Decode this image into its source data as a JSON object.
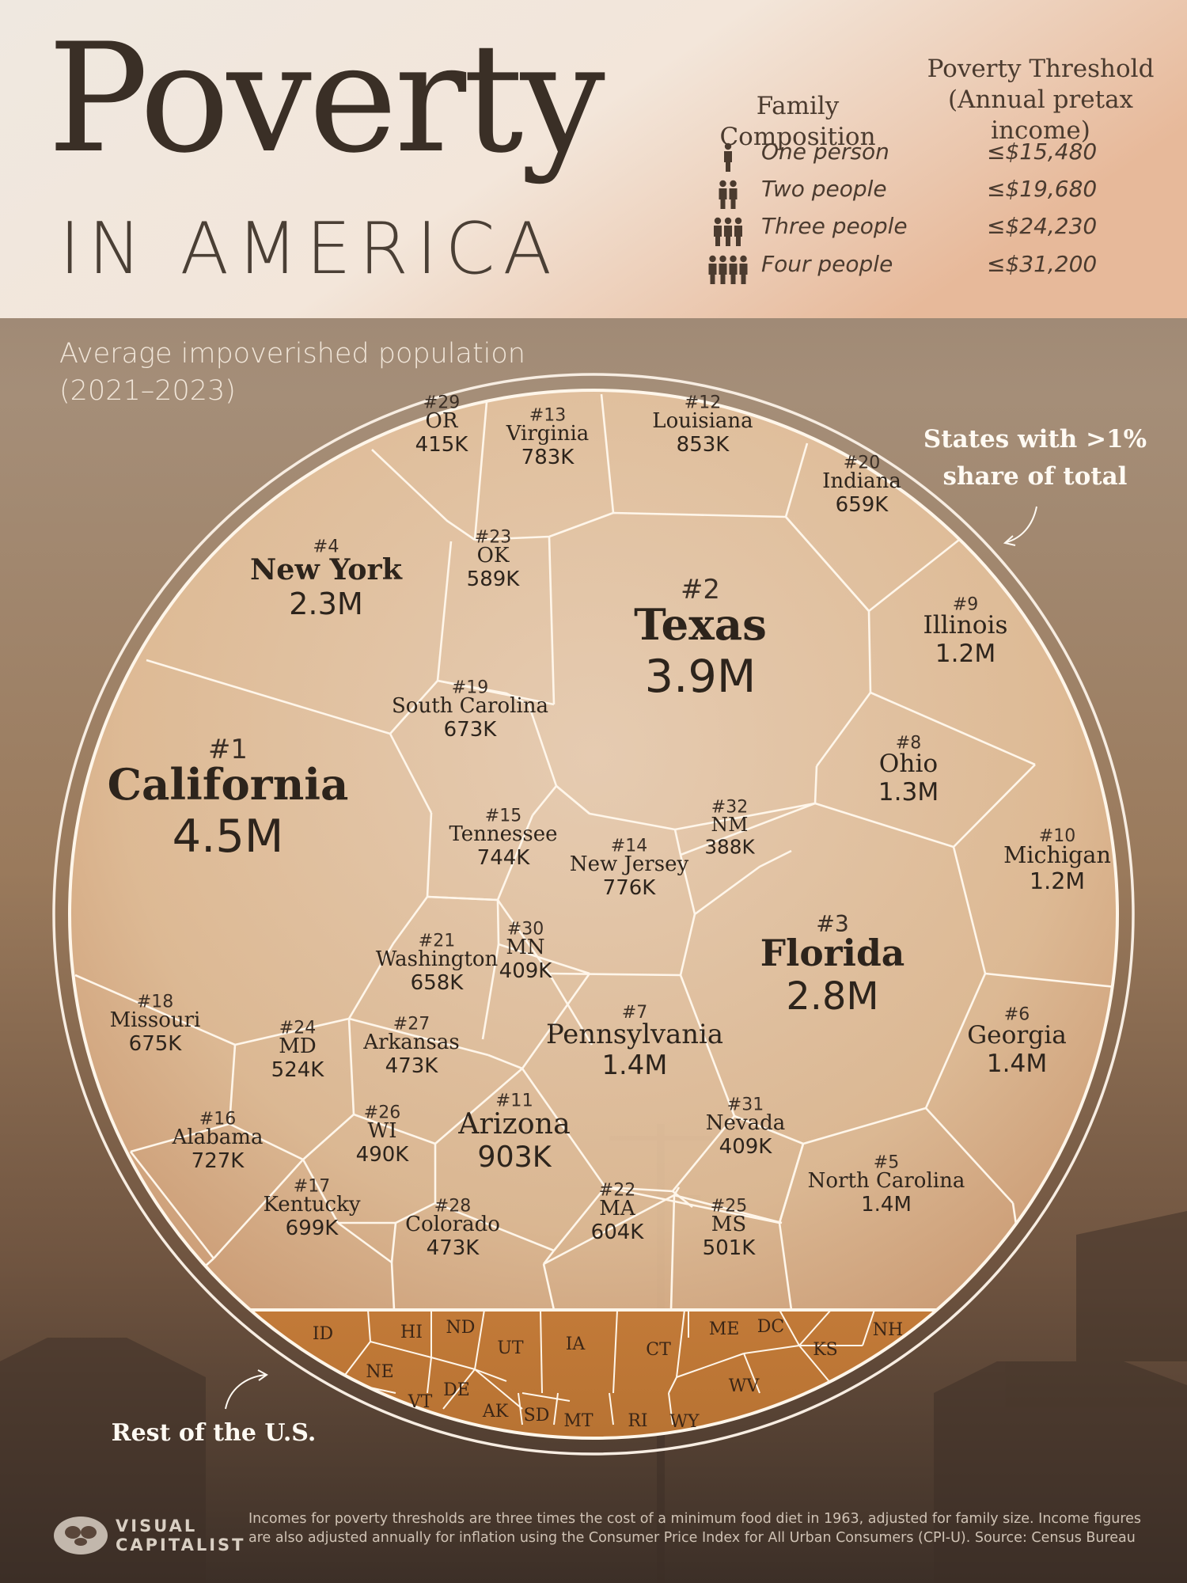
{
  "header": {
    "title": "Poverty",
    "subtitle": "IN AMERICA",
    "family_col_label": "Family Composition",
    "threshold_col_label_1": "Poverty Threshold",
    "threshold_col_label_2": "(Annual pretax income)",
    "rows": [
      {
        "label": "One person",
        "amount": "≤$15,480",
        "icon": "one-person-icon",
        "people": 1
      },
      {
        "label": "Two people",
        "amount": "≤$19,680",
        "icon": "two-people-icon",
        "people": 2
      },
      {
        "label": "Three people",
        "amount": "≤$24,230",
        "icon": "three-people-icon",
        "people": 3
      },
      {
        "label": "Four people",
        "amount": "≤$31,200",
        "icon": "four-people-icon",
        "people": 4
      }
    ]
  },
  "chart_subtitle": [
    "Average impoverished population",
    "(2021–2023)"
  ],
  "annotations": {
    "top_right": [
      "States with >1%",
      "share of total"
    ],
    "bottom_left": "Rest of the U.S."
  },
  "footer": {
    "logo_line1": "VISUAL",
    "logo_line2": "CAPITALIST",
    "note": "Incomes for poverty thresholds are three times the cost of a minimum food diet in 1963, adjusted for family size. Income figures are also adjusted annually for inflation using the Consumer Price Index for All Urban Consumers (CPI-U).  Source: Census Bureau"
  },
  "colors": {
    "cell_stroke": "#fff6ea",
    "text_dark": "#2d241c",
    "rest_fill": "#b8732e"
  },
  "chart_data": {
    "type": "voronoi-treemap",
    "unit": "people",
    "states": [
      {
        "rank": "#1",
        "name": "California",
        "value_label": "4.5M",
        "value": 4500000
      },
      {
        "rank": "#2",
        "name": "Texas",
        "value_label": "3.9M",
        "value": 3900000
      },
      {
        "rank": "#3",
        "name": "Florida",
        "value_label": "2.8M",
        "value": 2800000
      },
      {
        "rank": "#4",
        "name": "New York",
        "value_label": "2.3M",
        "value": 2300000
      },
      {
        "rank": "#5",
        "name": "North Carolina",
        "value_label": "1.4M",
        "value": 1400000
      },
      {
        "rank": "#6",
        "name": "Georgia",
        "value_label": "1.4M",
        "value": 1400000
      },
      {
        "rank": "#7",
        "name": "Pennsylvania",
        "value_label": "1.4M",
        "value": 1400000
      },
      {
        "rank": "#8",
        "name": "Ohio",
        "value_label": "1.3M",
        "value": 1300000
      },
      {
        "rank": "#9",
        "name": "Illinois",
        "value_label": "1.2M",
        "value": 1200000
      },
      {
        "rank": "#10",
        "name": "Michigan",
        "value_label": "1.2M",
        "value": 1200000
      },
      {
        "rank": "#11",
        "name": "Arizona",
        "value_label": "903K",
        "value": 903000
      },
      {
        "rank": "#12",
        "name": "Louisiana",
        "value_label": "853K",
        "value": 853000
      },
      {
        "rank": "#13",
        "name": "Virginia",
        "value_label": "783K",
        "value": 783000
      },
      {
        "rank": "#14",
        "name": "New Jersey",
        "value_label": "776K",
        "value": 776000
      },
      {
        "rank": "#15",
        "name": "Tennessee",
        "value_label": "744K",
        "value": 744000
      },
      {
        "rank": "#16",
        "name": "Alabama",
        "value_label": "727K",
        "value": 727000
      },
      {
        "rank": "#17",
        "name": "Kentucky",
        "value_label": "699K",
        "value": 699000
      },
      {
        "rank": "#18",
        "name": "Missouri",
        "value_label": "675K",
        "value": 675000
      },
      {
        "rank": "#19",
        "name": "South Carolina",
        "value_label": "673K",
        "value": 673000
      },
      {
        "rank": "#20",
        "name": "Indiana",
        "value_label": "659K",
        "value": 659000
      },
      {
        "rank": "#21",
        "name": "Washington",
        "value_label": "658K",
        "value": 658000
      },
      {
        "rank": "#22",
        "name": "MA",
        "value_label": "604K",
        "value": 604000
      },
      {
        "rank": "#23",
        "name": "OK",
        "value_label": "589K",
        "value": 589000
      },
      {
        "rank": "#24",
        "name": "MD",
        "value_label": "524K",
        "value": 524000
      },
      {
        "rank": "#25",
        "name": "MS",
        "value_label": "501K",
        "value": 501000
      },
      {
        "rank": "#26",
        "name": "WI",
        "value_label": "490K",
        "value": 490000
      },
      {
        "rank": "#27",
        "name": "Arkansas",
        "value_label": "473K",
        "value": 473000
      },
      {
        "rank": "#28",
        "name": "Colorado",
        "value_label": "473K",
        "value": 473000
      },
      {
        "rank": "#29",
        "name": "OR",
        "value_label": "415K",
        "value": 415000
      },
      {
        "rank": "#30",
        "name": "MN",
        "value_label": "409K",
        "value": 409000
      },
      {
        "rank": "#31",
        "name": "Nevada",
        "value_label": "409K",
        "value": 409000
      },
      {
        "rank": "#32",
        "name": "NM",
        "value_label": "388K",
        "value": 388000
      }
    ],
    "rest_of_us": [
      "ID",
      "HI",
      "ND",
      "UT",
      "IA",
      "CT",
      "ME",
      "DC",
      "KS",
      "NH",
      "NE",
      "VT",
      "DE",
      "AK",
      "SD",
      "MT",
      "RI",
      "WY",
      "WV"
    ]
  }
}
